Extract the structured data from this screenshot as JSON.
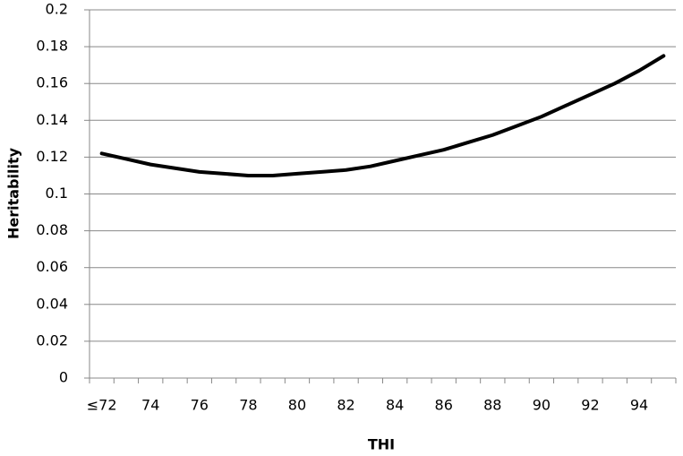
{
  "chart_data": {
    "type": "line",
    "x_label": "THI",
    "y_label": "Heritability",
    "categories": [
      "≤72",
      null,
      "74",
      null,
      "76",
      null,
      "78",
      null,
      "80",
      null,
      "82",
      null,
      "84",
      null,
      "86",
      null,
      "88",
      null,
      "90",
      null,
      "92",
      null,
      "94",
      null
    ],
    "series": [
      {
        "color": "#000000",
        "values": [
          0.122,
          0.119,
          0.116,
          0.114,
          0.112,
          0.111,
          0.11,
          0.11,
          0.111,
          0.112,
          0.113,
          0.115,
          0.118,
          0.121,
          0.124,
          0.128,
          0.132,
          0.137,
          0.142,
          0.148,
          0.154,
          0.16,
          0.167,
          0.175
        ]
      }
    ],
    "ylim": [
      0,
      0.2
    ],
    "yticks": [
      0,
      0.02,
      0.04,
      0.06,
      0.08,
      0.1,
      0.12,
      0.14,
      0.16,
      0.18,
      0.2
    ],
    "grid": true
  }
}
